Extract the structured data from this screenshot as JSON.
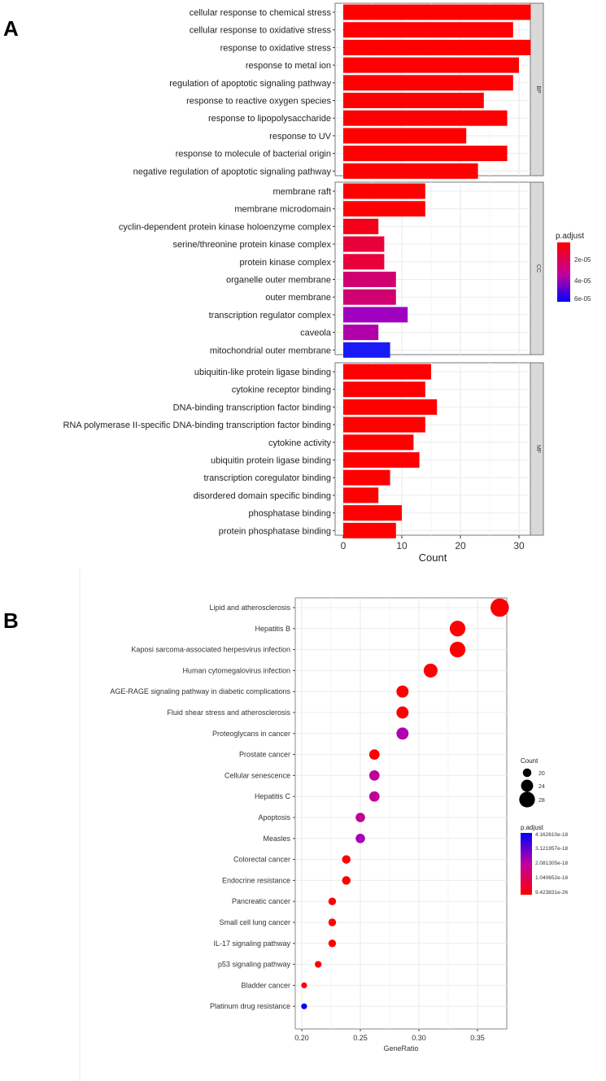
{
  "chart_data": [
    {
      "panel_label": "A",
      "type": "bar",
      "orientation": "horizontal",
      "xlabel": "Count",
      "xlim": [
        0,
        33
      ],
      "xticks": [
        0,
        10,
        20,
        30
      ],
      "grid": true,
      "legend": {
        "title": "p.adjust",
        "position": "right",
        "ticks": [
          "2e-05",
          "4e-05",
          "6e-05"
        ],
        "colors": [
          "#ff0000",
          "#0000ff"
        ]
      },
      "facets": [
        {
          "name": "BP",
          "bars": [
            {
              "term": "cellular response to chemical stress",
              "count": 32,
              "color": "#ff0000"
            },
            {
              "term": "cellular response to oxidative stress",
              "count": 29,
              "color": "#ff0000"
            },
            {
              "term": "response to oxidative stress",
              "count": 32,
              "color": "#ff0000"
            },
            {
              "term": "response to metal ion",
              "count": 30,
              "color": "#ff0000"
            },
            {
              "term": "regulation of apoptotic signaling pathway",
              "count": 29,
              "color": "#ff0000"
            },
            {
              "term": "response to reactive oxygen species",
              "count": 24,
              "color": "#ff0000"
            },
            {
              "term": "response to lipopolysaccharide",
              "count": 28,
              "color": "#ff0000"
            },
            {
              "term": "response to UV",
              "count": 21,
              "color": "#ff0000"
            },
            {
              "term": "response to molecule of bacterial origin",
              "count": 28,
              "color": "#ff0000"
            },
            {
              "term": "negative regulation of apoptotic signaling pathway",
              "count": 23,
              "color": "#ff0000"
            }
          ]
        },
        {
          "name": "CC",
          "bars": [
            {
              "term": "membrane raft",
              "count": 14,
              "color": "#ff0000"
            },
            {
              "term": "membrane microdomain",
              "count": 14,
              "color": "#ff0000"
            },
            {
              "term": "cyclin-dependent protein kinase holoenzyme complex",
              "count": 6,
              "color": "#f40018"
            },
            {
              "term": "serine/threonine protein kinase complex",
              "count": 7,
              "color": "#e8003a"
            },
            {
              "term": "protein kinase complex",
              "count": 7,
              "color": "#e8003a"
            },
            {
              "term": "organelle outer membrane",
              "count": 9,
              "color": "#d00070"
            },
            {
              "term": "outer membrane",
              "count": 9,
              "color": "#d00070"
            },
            {
              "term": "transcription regulator complex",
              "count": 11,
              "color": "#a000c0"
            },
            {
              "term": "caveola",
              "count": 6,
              "color": "#b000a8"
            },
            {
              "term": "mitochondrial outer membrane",
              "count": 8,
              "color": "#1a1af5"
            }
          ]
        },
        {
          "name": "MF",
          "bars": [
            {
              "term": "ubiquitin-like protein ligase binding",
              "count": 15,
              "color": "#ff0000"
            },
            {
              "term": "cytokine receptor binding",
              "count": 14,
              "color": "#ff0000"
            },
            {
              "term": "DNA-binding transcription factor binding",
              "count": 16,
              "color": "#ff0000"
            },
            {
              "term": "RNA polymerase II-specific DNA-binding transcription factor binding",
              "count": 14,
              "color": "#ff0000"
            },
            {
              "term": "cytokine activity",
              "count": 12,
              "color": "#ff0000"
            },
            {
              "term": "ubiquitin protein ligase binding",
              "count": 13,
              "color": "#ff0000"
            },
            {
              "term": "transcription coregulator binding",
              "count": 8,
              "color": "#ff0000"
            },
            {
              "term": "disordered domain specific binding",
              "count": 6,
              "color": "#ff0000"
            },
            {
              "term": "phosphatase binding",
              "count": 10,
              "color": "#ff0000"
            },
            {
              "term": "protein phosphatase binding",
              "count": 9,
              "color": "#ff0000"
            }
          ]
        }
      ]
    },
    {
      "panel_label": "B",
      "type": "scatter",
      "xlabel": "GeneRatio",
      "xlim": [
        0.193,
        0.375
      ],
      "xticks": [
        "0.20",
        "0.25",
        "0.30",
        "0.35"
      ],
      "grid": true,
      "legend": {
        "position": "right",
        "size_title": "Count",
        "size_ticks": [
          20,
          24,
          28
        ],
        "color_title": "p.adjust",
        "color_ticks": [
          "4.162610e-18",
          "3.121957e-18",
          "2.081305e-18",
          "1.040652e-18",
          "9.423831e-26"
        ]
      },
      "points": [
        {
          "term": "Lipid and atherosclerosis",
          "gene_ratio": 0.369,
          "count": 31,
          "color": "#ff0000"
        },
        {
          "term": "Hepatitis B",
          "gene_ratio": 0.333,
          "count": 28,
          "color": "#ff0000"
        },
        {
          "term": "Kaposi sarcoma-associated herpesvirus infection",
          "gene_ratio": 0.333,
          "count": 28,
          "color": "#ff0000"
        },
        {
          "term": "Human cytomegalovirus infection",
          "gene_ratio": 0.31,
          "count": 26,
          "color": "#ff0000"
        },
        {
          "term": "AGE-RAGE signaling pathway in diabetic complications",
          "gene_ratio": 0.286,
          "count": 24,
          "color": "#ff0000"
        },
        {
          "term": "Fluid shear stress and atherosclerosis",
          "gene_ratio": 0.286,
          "count": 24,
          "color": "#ff0000"
        },
        {
          "term": "Proteoglycans in cancer",
          "gene_ratio": 0.286,
          "count": 24,
          "color": "#b000b0"
        },
        {
          "term": "Prostate cancer",
          "gene_ratio": 0.262,
          "count": 22,
          "color": "#ff0000"
        },
        {
          "term": "Cellular senescence",
          "gene_ratio": 0.262,
          "count": 22,
          "color": "#c0009a"
        },
        {
          "term": "Hepatitis C",
          "gene_ratio": 0.262,
          "count": 22,
          "color": "#c0009a"
        },
        {
          "term": "Apoptosis",
          "gene_ratio": 0.25,
          "count": 21,
          "color": "#c40090"
        },
        {
          "term": "Measles",
          "gene_ratio": 0.25,
          "count": 21,
          "color": "#a800b8"
        },
        {
          "term": "Colorectal cancer",
          "gene_ratio": 0.238,
          "count": 20,
          "color": "#ff0000"
        },
        {
          "term": "Endocrine resistance",
          "gene_ratio": 0.238,
          "count": 20,
          "color": "#ff0000"
        },
        {
          "term": "Pancreatic cancer",
          "gene_ratio": 0.226,
          "count": 19,
          "color": "#ff0000"
        },
        {
          "term": "Small cell lung cancer",
          "gene_ratio": 0.226,
          "count": 19,
          "color": "#ff0000"
        },
        {
          "term": "IL-17 signaling pathway",
          "gene_ratio": 0.226,
          "count": 19,
          "color": "#ff0000"
        },
        {
          "term": "p53 signaling pathway",
          "gene_ratio": 0.214,
          "count": 18,
          "color": "#ff0000"
        },
        {
          "term": "Bladder cancer",
          "gene_ratio": 0.202,
          "count": 17,
          "color": "#ff0000"
        },
        {
          "term": "Platinum drug resistance",
          "gene_ratio": 0.202,
          "count": 17,
          "color": "#0000ff"
        }
      ]
    }
  ]
}
